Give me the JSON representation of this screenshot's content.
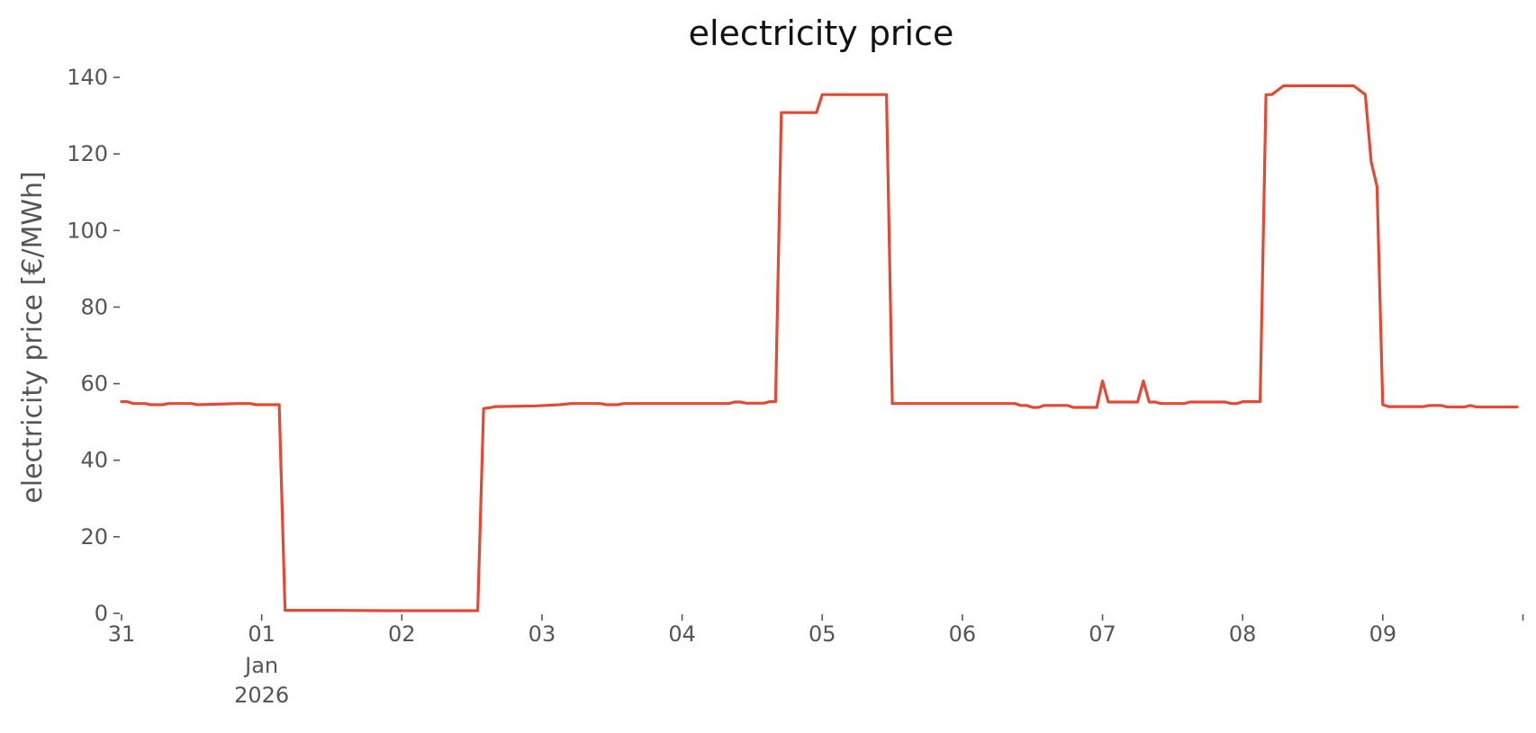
{
  "chart_data": {
    "type": "line",
    "title": "electricity price",
    "xlabel": "",
    "ylabel": "electricity price [€/MWh]",
    "ylim": [
      0,
      140
    ],
    "yticks": [
      0,
      20,
      40,
      60,
      80,
      100,
      120,
      140
    ],
    "xlim": [
      "2025-12-31T00:00",
      "2026-01-09T23:00"
    ],
    "xticks": [
      {
        "value": "2025-12-31",
        "label": "31"
      },
      {
        "value": "2026-01-01",
        "label": "01",
        "sublabel_1": "Jan",
        "sublabel_2": "2026"
      },
      {
        "value": "2026-01-02",
        "label": "02"
      },
      {
        "value": "2026-01-03",
        "label": "03"
      },
      {
        "value": "2026-01-04",
        "label": "04"
      },
      {
        "value": "2026-01-05",
        "label": "05"
      },
      {
        "value": "2026-01-06",
        "label": "06"
      },
      {
        "value": "2026-01-07",
        "label": "07"
      },
      {
        "value": "2026-01-08",
        "label": "08"
      },
      {
        "value": "2026-01-09",
        "label": "09"
      },
      {
        "value": "2026-01-10",
        "label": ""
      }
    ],
    "grid": false,
    "line_color": "#E24A33",
    "series": [
      {
        "values": [
          [
            "2025-12-31T00:00",
            55.3
          ],
          [
            "2025-12-31T01:00",
            55.3
          ],
          [
            "2025-12-31T02:00",
            54.8
          ],
          [
            "2025-12-31T04:00",
            54.8
          ],
          [
            "2025-12-31T05:00",
            54.5
          ],
          [
            "2025-12-31T07:00",
            54.5
          ],
          [
            "2025-12-31T08:00",
            54.8
          ],
          [
            "2025-12-31T12:00",
            54.8
          ],
          [
            "2025-12-31T13:00",
            54.5
          ],
          [
            "2025-12-31T20:00",
            54.8
          ],
          [
            "2025-12-31T22:00",
            54.8
          ],
          [
            "2025-12-31T23:00",
            54.5
          ],
          [
            "2026-01-01T03:00",
            54.5
          ],
          [
            "2026-01-01T04:00",
            0.8
          ],
          [
            "2026-01-01T12:00",
            0.8
          ],
          [
            "2026-01-01T21:00",
            0.7
          ],
          [
            "2026-01-02T00:00",
            0.7
          ],
          [
            "2026-01-02T13:00",
            0.7
          ],
          [
            "2026-01-02T14:00",
            53.5
          ],
          [
            "2026-01-02T15:00",
            53.7
          ],
          [
            "2026-01-02T16:00",
            54.0
          ],
          [
            "2026-01-02T23:00",
            54.2
          ],
          [
            "2026-01-03T03:00",
            54.5
          ],
          [
            "2026-01-03T05:00",
            54.8
          ],
          [
            "2026-01-03T10:00",
            54.8
          ],
          [
            "2026-01-03T11:00",
            54.5
          ],
          [
            "2026-01-03T13:00",
            54.5
          ],
          [
            "2026-01-03T14:00",
            54.8
          ],
          [
            "2026-01-04T08:00",
            54.8
          ],
          [
            "2026-01-04T09:00",
            55.2
          ],
          [
            "2026-01-04T10:00",
            55.2
          ],
          [
            "2026-01-04T11:00",
            54.9
          ],
          [
            "2026-01-04T14:00",
            54.9
          ],
          [
            "2026-01-04T15:00",
            55.3
          ],
          [
            "2026-01-04T16:00",
            55.3
          ],
          [
            "2026-01-04T17:00",
            130.8
          ],
          [
            "2026-01-04T23:00",
            130.8
          ],
          [
            "2026-01-05T00:00",
            135.5
          ],
          [
            "2026-01-05T11:00",
            135.5
          ],
          [
            "2026-01-05T12:00",
            54.8
          ],
          [
            "2026-01-06T09:00",
            54.8
          ],
          [
            "2026-01-06T10:00",
            54.3
          ],
          [
            "2026-01-06T11:00",
            54.3
          ],
          [
            "2026-01-06T12:00",
            53.8
          ],
          [
            "2026-01-06T13:00",
            53.8
          ],
          [
            "2026-01-06T14:00",
            54.3
          ],
          [
            "2026-01-06T18:00",
            54.3
          ],
          [
            "2026-01-06T19:00",
            53.8
          ],
          [
            "2026-01-06T23:00",
            53.8
          ],
          [
            "2026-01-07T00:00",
            60.7
          ],
          [
            "2026-01-07T01:00",
            55.2
          ],
          [
            "2026-01-07T06:00",
            55.2
          ],
          [
            "2026-01-07T07:00",
            60.7
          ],
          [
            "2026-01-07T08:00",
            55.2
          ],
          [
            "2026-01-07T09:00",
            55.2
          ],
          [
            "2026-01-07T10:00",
            54.8
          ],
          [
            "2026-01-07T14:00",
            54.8
          ],
          [
            "2026-01-07T15:00",
            55.2
          ],
          [
            "2026-01-07T21:00",
            55.2
          ],
          [
            "2026-01-07T22:00",
            54.8
          ],
          [
            "2026-01-07T23:00",
            54.8
          ],
          [
            "2026-01-08T00:00",
            55.3
          ],
          [
            "2026-01-08T03:00",
            55.3
          ],
          [
            "2026-01-08T04:00",
            135.5
          ],
          [
            "2026-01-08T05:00",
            135.5
          ],
          [
            "2026-01-08T07:00",
            137.8
          ],
          [
            "2026-01-08T19:00",
            137.8
          ],
          [
            "2026-01-08T21:00",
            135.5
          ],
          [
            "2026-01-08T22:00",
            118.0
          ],
          [
            "2026-01-08T23:00",
            111.5
          ],
          [
            "2026-01-09T00:00",
            54.5
          ],
          [
            "2026-01-09T01:00",
            54.0
          ],
          [
            "2026-01-09T07:00",
            54.0
          ],
          [
            "2026-01-09T08:00",
            54.3
          ],
          [
            "2026-01-09T10:00",
            54.3
          ],
          [
            "2026-01-09T11:00",
            53.9
          ],
          [
            "2026-01-09T14:00",
            53.9
          ],
          [
            "2026-01-09T15:00",
            54.3
          ],
          [
            "2026-01-09T16:00",
            53.9
          ],
          [
            "2026-01-09T23:00",
            53.9
          ]
        ]
      }
    ]
  }
}
